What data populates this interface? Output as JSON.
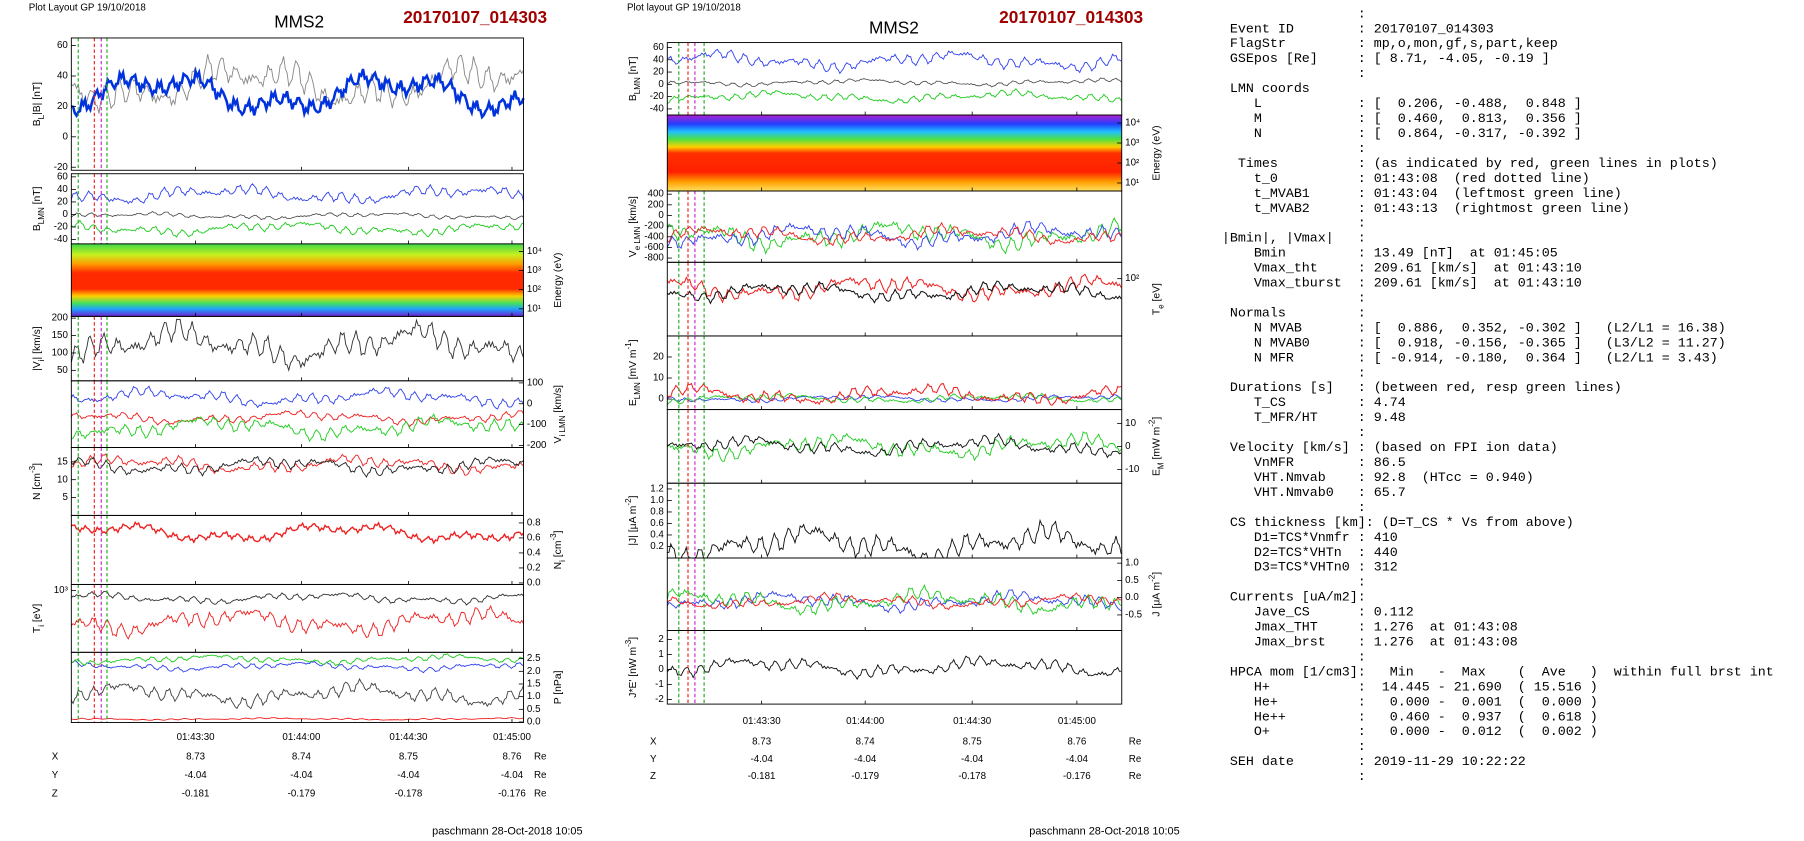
{
  "figures": [
    {
      "header": "Plot Layout GP 19/10/2018",
      "title": "MMS2",
      "event": "20170107_014303",
      "panels": [
        {
          "ylabel": [
            {
              "text": "B"
            },
            {
              "sub": "L"
            },
            {
              "text": "|B| [nT]"
            }
          ],
          "side": "left",
          "ylim": [
            -22,
            65
          ],
          "yticks": [
            60,
            40,
            20,
            0,
            -20
          ]
        },
        {
          "ylabel": [
            {
              "text": "B"
            },
            {
              "sub": "LMN"
            },
            {
              "text": " [nT]"
            }
          ],
          "side": "left",
          "ylim": [
            -47,
            65
          ],
          "yticks": [
            60,
            40,
            20,
            0,
            -20,
            -40
          ]
        },
        {
          "ylabel": [
            {
              "text": "Energy (eV)"
            }
          ],
          "side": "right",
          "ylim": [
            0.6,
            4.4
          ],
          "yticks": [
            {
              "value": 4,
              "label": "10⁴"
            },
            {
              "value": 3,
              "label": "10³"
            },
            {
              "value": 2,
              "label": "10²"
            },
            {
              "value": 1,
              "label": "10¹"
            }
          ],
          "spectrogram": true
        },
        {
          "ylabel": [
            {
              "text": "|V"
            },
            {
              "sub": "i"
            },
            {
              "text": "| [km/s]"
            }
          ],
          "side": "left",
          "ylim": [
            20,
            205
          ],
          "yticks": [
            200,
            150,
            100,
            50
          ]
        },
        {
          "ylabel": [
            {
              "text": "V"
            },
            {
              "sub": "i LMN"
            },
            {
              "text": " [km/s]"
            }
          ],
          "side": "right",
          "ylim": [
            -210,
            110
          ],
          "yticks": [
            100,
            0,
            -100,
            -200
          ]
        },
        {
          "ylabel": [
            {
              "text": "N [cm"
            },
            {
              "sup": "-3"
            },
            {
              "text": "]"
            }
          ],
          "side": "left",
          "ylim": [
            0,
            19
          ],
          "yticks": [
            15,
            10,
            5
          ]
        },
        {
          "ylabel": [
            {
              "text": "N"
            },
            {
              "sub": "i"
            },
            {
              "text": " [cm"
            },
            {
              "sup": "-3"
            },
            {
              "text": "]"
            }
          ],
          "side": "right",
          "ylim": [
            -0.02,
            0.9
          ],
          "yticks": [
            0.8,
            0.6,
            0.4,
            0.2,
            {
              "value": 0,
              "label": "0.0"
            }
          ]
        },
        {
          "ylabel": [
            {
              "text": "T"
            },
            {
              "sub": "i"
            },
            {
              "text": " [eV]"
            }
          ],
          "side": "left",
          "ylim": [
            1.5,
            3.15
          ],
          "yticks": [
            {
              "value": 3,
              "label": "10³"
            }
          ]
        },
        {
          "ylabel": [
            {
              "text": "P [nPa]"
            }
          ],
          "side": "right",
          "ylim": [
            -0.02,
            2.75
          ],
          "yticks": [
            2.5,
            {
              "value": 2,
              "label": "2.0"
            },
            1.5,
            {
              "value": 1,
              "label": "1.0"
            },
            0.5,
            {
              "value": 0,
              "label": "0.0"
            }
          ]
        }
      ],
      "xticks": [
        "01:43:30",
        "01:44:00",
        "01:44:30",
        "01:45:00"
      ],
      "coords": [
        {
          "name": "X",
          "values": [
            "8.73",
            "8.74",
            "8.75",
            "8.76"
          ],
          "unit": "Re"
        },
        {
          "name": "Y",
          "values": [
            "-4.04",
            "-4.04",
            "-4.04",
            "-4.04"
          ],
          "unit": "Re"
        },
        {
          "name": "Z",
          "values": [
            "-0.181",
            "-0.179",
            "-0.178",
            "-0.176"
          ],
          "unit": "Re"
        }
      ],
      "footer": "paschmann 28-Oct-2018 10:05"
    },
    {
      "header": "Plot layout GP 19/10/2018",
      "title": "MMS2",
      "event": "20170107_014303",
      "panels": [
        {
          "ylabel": [
            {
              "text": "B"
            },
            {
              "sub": "LMN"
            },
            {
              "text": " [nT]"
            }
          ],
          "side": "left",
          "ylim": [
            -50,
            68
          ],
          "yticks": [
            60,
            40,
            20,
            0,
            -20,
            -40
          ]
        },
        {
          "ylabel": [
            {
              "text": "Energy (eV)"
            }
          ],
          "side": "right",
          "ylim": [
            0.6,
            4.4
          ],
          "yticks": [
            {
              "value": 4,
              "label": "10⁴"
            },
            {
              "value": 3,
              "label": "10³"
            },
            {
              "value": 2,
              "label": "10²"
            },
            {
              "value": 1,
              "label": "10¹"
            }
          ],
          "spectrogram": true
        },
        {
          "ylabel": [
            {
              "text": "V"
            },
            {
              "sub": "e LMN"
            },
            {
              "text": " [km/s]"
            }
          ],
          "side": "left",
          "ylim": [
            -880,
            460
          ],
          "yticks": [
            400,
            200,
            0,
            -200,
            -400,
            -600,
            -800
          ]
        },
        {
          "ylabel": [
            {
              "text": "T"
            },
            {
              "sub": "e"
            },
            {
              "text": " [eV]"
            }
          ],
          "side": "right",
          "ylim": [
            1.3,
            2.2
          ],
          "yticks": [
            {
              "value": 2,
              "label": "10²"
            }
          ]
        },
        {
          "ylabel": [
            {
              "text": "E"
            },
            {
              "sub": "LMN"
            },
            {
              "text": " [mV m"
            },
            {
              "sup": "-1"
            },
            {
              "text": "]"
            }
          ],
          "side": "left",
          "ylim": [
            -5,
            30
          ],
          "yticks": [
            20,
            10,
            0
          ]
        },
        {
          "ylabel": [
            {
              "text": "E"
            },
            {
              "sub": "M"
            },
            {
              "text": " [mW m"
            },
            {
              "sup": "-2"
            },
            {
              "text": "]"
            }
          ],
          "side": "right",
          "ylim": [
            -16,
            16
          ],
          "yticks": [
            10,
            0,
            -10
          ]
        },
        {
          "ylabel": [
            {
              "text": "|J| [μA m"
            },
            {
              "sup": "-2"
            },
            {
              "text": "]"
            }
          ],
          "side": "left",
          "ylim": [
            0,
            1.3
          ],
          "yticks": [
            1.2,
            {
              "value": 1,
              "label": "1.0"
            },
            0.8,
            0.6,
            0.4,
            0.2
          ]
        },
        {
          "ylabel": [
            {
              "text": "J [μA m"
            },
            {
              "sup": "-2"
            },
            {
              "text": "]"
            }
          ],
          "side": "right",
          "ylim": [
            -0.95,
            1.15
          ],
          "yticks": [
            {
              "value": 1,
              "label": "1.0"
            },
            0.5,
            {
              "value": 0,
              "label": "0.0"
            },
            -0.5
          ]
        },
        {
          "ylabel": [
            {
              "text": "J*E' [nW m"
            },
            {
              "sup": "-3"
            },
            {
              "text": "]"
            }
          ],
          "side": "left",
          "ylim": [
            -2.3,
            2.6
          ],
          "yticks": [
            2,
            1,
            0,
            -1,
            -2
          ]
        }
      ],
      "xticks": [
        "01:43:30",
        "01:44:00",
        "01:44:30",
        "01:45:00"
      ],
      "coords": [
        {
          "name": "X",
          "values": [
            "8.73",
            "8.74",
            "8.75",
            "8.76"
          ],
          "unit": "Re"
        },
        {
          "name": "Y",
          "values": [
            "-4.04",
            "-4.04",
            "-4.04",
            "-4.04"
          ],
          "unit": "Re"
        },
        {
          "name": "Z",
          "values": [
            "-0.181",
            "-0.179",
            "-0.178",
            "-0.176"
          ],
          "unit": "Re"
        }
      ],
      "footer": "paschmann 28-Oct-2018 10:05"
    }
  ],
  "summary": [
    "                 :",
    " Event ID        : 20170107_014303",
    " FlagStr         : mp,o,mon,gf,s,part,keep",
    " GSEpos [Re]     : [ 8.71, -4.05, -0.19 ]",
    "                 :",
    " LMN coords",
    "    L            : [  0.206, -0.488,  0.848 ]",
    "    M            : [  0.460,  0.813,  0.356 ]",
    "    N            : [  0.864, -0.317, -0.392 ]",
    "                 :",
    "  Times          : (as indicated by red, green lines in plots)",
    "    t_0          : 01:43:08  (red dotted line)",
    "    t_MVAB1      : 01:43:04  (leftmost green line)",
    "    t_MVAB2      : 01:43:13  (rightmost green line)",
    "                 :",
    "|Bmin|, |Vmax|   :",
    "    Bmin         : 13.49 [nT]  at 01:45:05",
    "    Vmax_tht     : 209.61 [km/s]  at 01:43:10",
    "    Vmax_tburst  : 209.61 [km/s]  at 01:43:10",
    "                 :",
    " Normals         :",
    "    N MVAB       : [  0.886,  0.352, -0.302 ]   (L2/L1 = 16.38)",
    "    N MVAB0      : [  0.918, -0.156, -0.365 ]   (L3/L2 = 11.27)",
    "    N MFR        : [ -0.914, -0.180,  0.364 ]   (L2/L1 = 3.43)",
    "                 :",
    " Durations [s]   : (between red, resp green lines)",
    "    T_CS         : 4.74",
    "    T_MFR/HT     : 9.48",
    "                 :",
    " Velocity [km/s] : (based on FPI ion data)",
    "    VnMFR        : 86.5",
    "    VHT.Nmvab    : 92.8  (HTcc = 0.940)",
    "    VHT.Nmvab0   : 65.7",
    "                 :",
    " CS thickness [km]: (D=T_CS * Vs from above)",
    "    D1=TCS*Vnmfr : 410",
    "    D2=TCS*VHTn  : 440",
    "    D3=TCS*VHTn0 : 312",
    "                 :",
    " Currents [uA/m2]:",
    "    Jave_CS      : 0.112",
    "    Jmax_THT     : 1.276  at 01:43:08",
    "    Jmax_brst    : 1.276  at 01:43:08",
    "                 :",
    " HPCA mom [1/cm3]:   Min   -  Max    (  Ave   )  within full brst int",
    "    H+           :  14.445 - 21.690  ( 15.516 )",
    "    He+          :   0.000 -  0.001  (  0.000 )",
    "    He++         :   0.460 -  0.937  (  0.618 )",
    "    O+           :   0.000 -  0.012  (  0.002 )",
    "                 :",
    " SEH date        : 2019-11-29 10:22:22",
    "                 :"
  ]
}
